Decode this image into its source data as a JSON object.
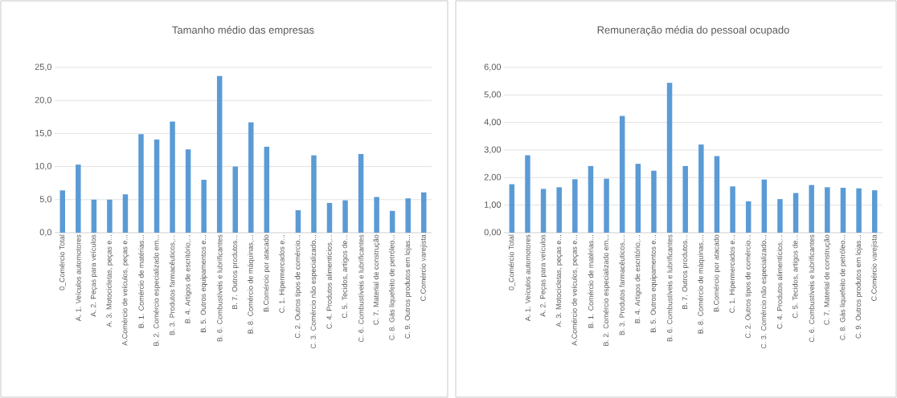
{
  "chart_data": [
    {
      "type": "bar",
      "title": "Tamanho médio das empresas",
      "categories": [
        "0_Comércio Total",
        "A. 1. Veículos automotores",
        "A. 2. Peças para veículos",
        "A. 3. Motocicletas, peças e...",
        "A.Comércio de veículos, peças e...",
        "B. 1. Comércio de matérias...",
        "B. 2. Comércio especializado em...",
        "B. 3. Produtos farmacêuticos,...",
        "B. 4. Artigos de escritório,...",
        "B. 5. Outros equipamentos e...",
        "B. 6. Combustíveis e lubrificantes",
        "B. 7. Outros produtos...",
        "B. 8. Comércio de máquinas,...",
        "B.Comércio por atacado",
        "C. 1. Hipermercados e...",
        "C. 2. Outros tipos de comércio...",
        "C. 3. Comércio não especializado...",
        "C. 4. Produtos alimentícios,...",
        "C. 5. Tecidos, artigos de...",
        "C. 6. Combustíveis e lubrificantes",
        "C. 7. Material de construção",
        "C. 8. Gás liquefeito de petróleo...",
        "C. 9. Outros produtos em lojas...",
        "C.Comércio varejista"
      ],
      "values": [
        6.4,
        10.3,
        5.0,
        5.0,
        5.8,
        14.9,
        14.1,
        16.8,
        12.6,
        8.0,
        23.7,
        10.0,
        16.7,
        13.0,
        null,
        3.4,
        11.7,
        4.5,
        4.9,
        11.9,
        5.4,
        3.3,
        5.2,
        6.1
      ],
      "color": "#5b9bd5",
      "ylim": [
        0,
        25
      ],
      "yticks": [
        {
          "value": 0,
          "label": "0,0"
        },
        {
          "value": 5,
          "label": "5,0"
        },
        {
          "value": 10,
          "label": "10,0"
        },
        {
          "value": 15,
          "label": "15,0"
        },
        {
          "value": 20,
          "label": "20,0"
        },
        {
          "value": 25,
          "label": "25,0"
        }
      ],
      "grid": "y"
    },
    {
      "type": "bar",
      "title": "Remuneração média do pessoal ocupado",
      "categories": [
        "0_Comércio Total",
        "A. 1. Veículos automotores",
        "A. 2. Peças para veículos",
        "A. 3. Motocicletas, peças e...",
        "A.Comércio de veículos, peças e...",
        "B. 1. Comércio de matérias...",
        "B. 2. Comércio especializado em...",
        "B. 3. Produtos farmacêuticos,...",
        "B. 4. Artigos de escritório,...",
        "B. 5. Outros equipamentos e...",
        "B. 6. Combustíveis e lubrificantes",
        "B. 7. Outros produtos...",
        "B. 8. Comércio de máquinas,...",
        "B.Comércio por atacado",
        "C. 1. Hipermercados e...",
        "C. 2. Outros tipos de comércio...",
        "C. 3. Comércio não especializado...",
        "C. 4. Produtos alimentícios,...",
        "C. 5. Tecidos, artigos de...",
        "C. 6. Combustíveis e lubrificantes",
        "C. 7. Material de construção",
        "C. 8. Gás liquefeito de petróleo...",
        "C. 9. Outros produtos em lojas...",
        "C.Comércio varejista"
      ],
      "values": [
        1.76,
        2.81,
        1.59,
        1.65,
        1.94,
        2.42,
        1.96,
        4.24,
        2.5,
        2.25,
        5.44,
        2.42,
        3.2,
        2.78,
        1.68,
        1.14,
        1.93,
        1.22,
        1.44,
        1.73,
        1.65,
        1.63,
        1.61,
        1.54
      ],
      "color": "#5b9bd5",
      "ylim": [
        0,
        6
      ],
      "yticks": [
        {
          "value": 0,
          "label": "0,00"
        },
        {
          "value": 1,
          "label": "1,00"
        },
        {
          "value": 2,
          "label": "2,00"
        },
        {
          "value": 3,
          "label": "3,00"
        },
        {
          "value": 4,
          "label": "4,00"
        },
        {
          "value": 5,
          "label": "5,00"
        },
        {
          "value": 6,
          "label": "6,00"
        }
      ],
      "grid": "y"
    }
  ]
}
